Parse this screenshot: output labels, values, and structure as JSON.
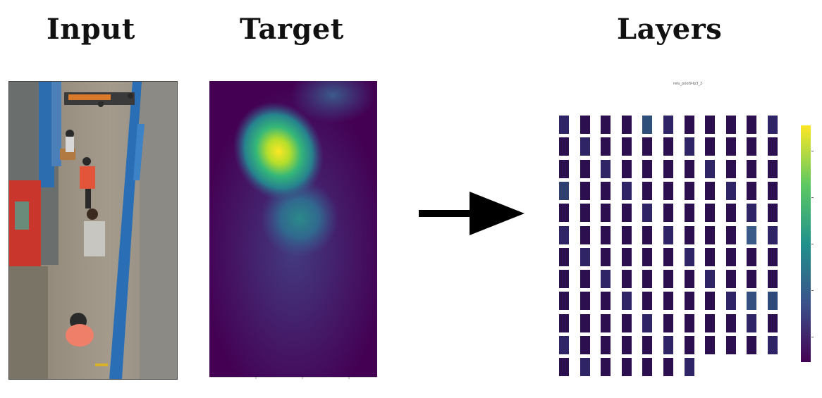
{
  "headings": {
    "input": "Input",
    "target": "Target",
    "layers": "Layers"
  },
  "layers_figure": {
    "title": "relu_pool9-lp3_2",
    "grid_rows": [
      11,
      11,
      11,
      11,
      11,
      11,
      11,
      11,
      11,
      11,
      11,
      7
    ],
    "colormap": "viridis"
  },
  "icons": {
    "arrow": "right-arrow-icon"
  },
  "colors": {
    "background": "#ffffff",
    "heading": "#111111",
    "arrow": "#000000",
    "tile": "#2b0f4e"
  }
}
